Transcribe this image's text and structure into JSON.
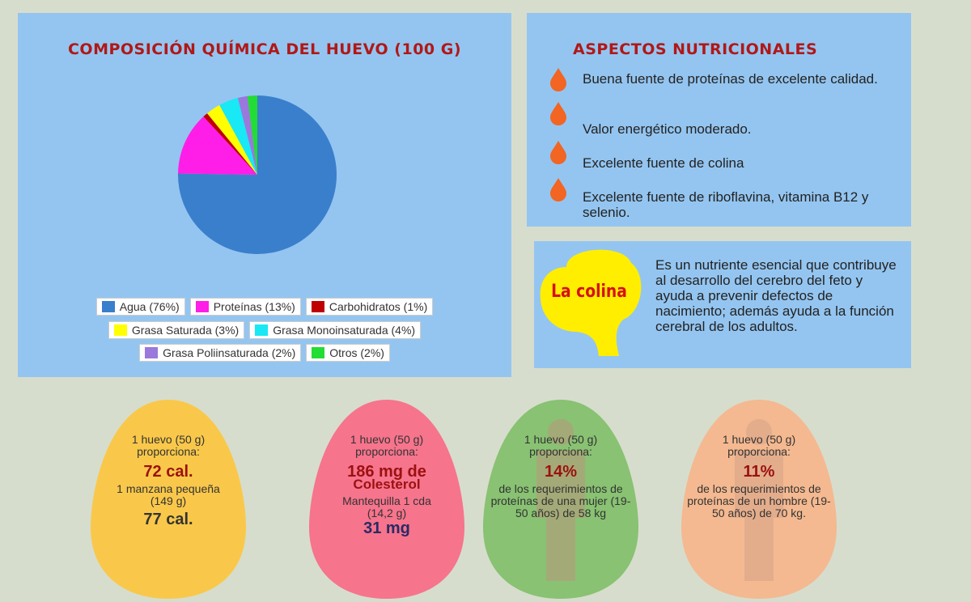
{
  "chart_data": {
    "type": "pie",
    "title": "COMPOSICIÓN QUÍMICA  DEL HUEVO (100 G)",
    "categories": [
      "Agua (76%)",
      "Proteínas (13%)",
      "Carbohidratos (1%)",
      "Grasa Saturada (3%)",
      "Grasa Monoinsaturada (4%)",
      "Grasa Poliinsaturada (2%)",
      "Otros (2%)"
    ],
    "values": [
      76,
      13,
      1,
      3,
      4,
      2,
      2
    ],
    "colors": [
      "#3a7fcc",
      "#ff1ee8",
      "#c00000",
      "#ffff00",
      "#19e8f5",
      "#9a78dc",
      "#22dd33"
    ]
  },
  "aspects": {
    "title": "ASPECTOS NUTRICIONALES",
    "items": [
      "Buena fuente de proteínas de excelente calidad.",
      "Valor energético moderado.",
      "Excelente fuente de colina",
      "Excelente fuente de riboflavina, vitamina B12 y selenio."
    ]
  },
  "colina": {
    "label": "La colina",
    "text": "Es un nutriente esencial que contribuye al desarrollo del cerebro del feto y ayuda a prevenir defectos de nacimiento; además ayuda a la función cerebral de los adultos."
  },
  "eggs": [
    {
      "intro": "1 huevo (50 g) proporciona:",
      "highlight": "72 cal.",
      "detail": "1 manzana pequeña (149 g)",
      "compare": "77 cal."
    },
    {
      "intro": "1 huevo (50 g) proporciona:",
      "highlight": "186 mg de",
      "highlight2": "Colesterol",
      "detail": "Mantequilla 1 cda (14,2 g)",
      "compare": "31 mg"
    },
    {
      "intro": "1 huevo (50 g) proporciona:",
      "highlight": "14%",
      "detail": "de los requerimientos de proteínas de una mujer (19-50 años) de 58 kg"
    },
    {
      "intro": "1 huevo (50 g) proporciona:",
      "highlight": "11%",
      "detail": "de los requerimientos de proteínas de un hombre (19-50 años) de 70 kg."
    }
  ]
}
